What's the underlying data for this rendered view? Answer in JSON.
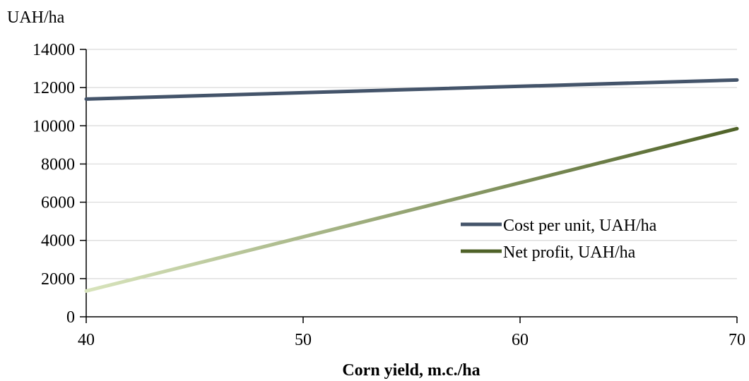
{
  "chart_data": {
    "type": "line",
    "title": "",
    "xlabel": "Corn yield, m.c./ha",
    "ylabel": "UAH/ha",
    "x": [
      40,
      70
    ],
    "xlim": [
      40,
      70
    ],
    "ylim": [
      0,
      14000
    ],
    "xticks": [
      "40",
      "50",
      "60",
      "70"
    ],
    "yticks": [
      "0",
      "2000",
      "4000",
      "6000",
      "8000",
      "10000",
      "12000",
      "14000"
    ],
    "grid": true,
    "legend_position": "right",
    "series": [
      {
        "name": "Cost per unit, UAH/ha",
        "values": [
          11400,
          12400
        ],
        "color": "#44546a"
      },
      {
        "name": "Net profit, UAH/ha",
        "values": [
          1350,
          9850
        ],
        "color_start": "#d8e4bc",
        "color_end": "#4f6228"
      }
    ]
  }
}
